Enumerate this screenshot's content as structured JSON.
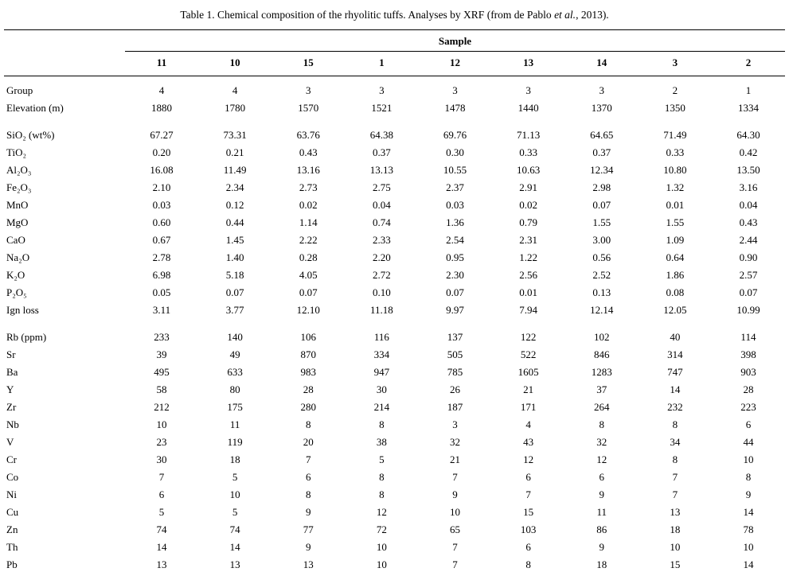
{
  "caption": {
    "part1": "Table 1. Chemical composition of the rhyolitic tuffs. Analyses by XRF (from de Pablo ",
    "italic": "et al.",
    "part2": ", 2013)."
  },
  "table": {
    "group_header": "Sample",
    "columns": [
      "11",
      "10",
      "15",
      "1",
      "12",
      "13",
      "14",
      "3",
      "2"
    ],
    "sections": [
      {
        "name": "sample-info",
        "rows": [
          {
            "label": "Group",
            "values": [
              "4",
              "4",
              "3",
              "3",
              "3",
              "3",
              "3",
              "2",
              "1"
            ]
          },
          {
            "label": "Elevation (m)",
            "values": [
              "1880",
              "1780",
              "1570",
              "1521",
              "1478",
              "1440",
              "1370",
              "1350",
              "1334"
            ]
          }
        ]
      },
      {
        "name": "major-oxides",
        "rows": [
          {
            "label": "SiO₂ (wt%)",
            "values": [
              "67.27",
              "73.31",
              "63.76",
              "64.38",
              "69.76",
              "71.13",
              "64.65",
              "71.49",
              "64.30"
            ]
          },
          {
            "label": "TiO₂",
            "values": [
              "0.20",
              "0.21",
              "0.43",
              "0.37",
              "0.30",
              "0.33",
              "0.37",
              "0.33",
              "0.42"
            ]
          },
          {
            "label": "Al₂O₃",
            "values": [
              "16.08",
              "11.49",
              "13.16",
              "13.13",
              "10.55",
              "10.63",
              "12.34",
              "10.80",
              "13.50"
            ]
          },
          {
            "label": "Fe₂O₃",
            "values": [
              "2.10",
              "2.34",
              "2.73",
              "2.75",
              "2.37",
              "2.91",
              "2.98",
              "1.32",
              "3.16"
            ]
          },
          {
            "label": "MnO",
            "values": [
              "0.03",
              "0.12",
              "0.02",
              "0.04",
              "0.03",
              "0.02",
              "0.07",
              "0.01",
              "0.04"
            ]
          },
          {
            "label": "MgO",
            "values": [
              "0.60",
              "0.44",
              "1.14",
              "0.74",
              "1.36",
              "0.79",
              "1.55",
              "1.55",
              "0.43"
            ]
          },
          {
            "label": "CaO",
            "values": [
              "0.67",
              "1.45",
              "2.22",
              "2.33",
              "2.54",
              "2.31",
              "3.00",
              "1.09",
              "2.44"
            ]
          },
          {
            "label": "Na₂O",
            "values": [
              "2.78",
              "1.40",
              "0.28",
              "2.20",
              "0.95",
              "1.22",
              "0.56",
              "0.64",
              "0.90"
            ]
          },
          {
            "label": "K₂O",
            "values": [
              "6.98",
              "5.18",
              "4.05",
              "2.72",
              "2.30",
              "2.56",
              "2.52",
              "1.86",
              "2.57"
            ]
          },
          {
            "label": "P₂O₅",
            "values": [
              "0.05",
              "0.07",
              "0.07",
              "0.10",
              "0.07",
              "0.01",
              "0.13",
              "0.08",
              "0.07"
            ]
          },
          {
            "label": "Ign loss",
            "values": [
              "3.11",
              "3.77",
              "12.10",
              "11.18",
              "9.97",
              "7.94",
              "12.14",
              "12.05",
              "10.99"
            ]
          }
        ]
      },
      {
        "name": "trace-elements",
        "rows": [
          {
            "label": "Rb (ppm)",
            "values": [
              "233",
              "140",
              "106",
              "116",
              "137",
              "122",
              "102",
              "40",
              "114"
            ]
          },
          {
            "label": "Sr",
            "values": [
              "39",
              "49",
              "870",
              "334",
              "505",
              "522",
              "846",
              "314",
              "398"
            ]
          },
          {
            "label": "Ba",
            "values": [
              "495",
              "633",
              "983",
              "947",
              "785",
              "1605",
              "1283",
              "747",
              "903"
            ]
          },
          {
            "label": "Y",
            "values": [
              "58",
              "80",
              "28",
              "30",
              "26",
              "21",
              "37",
              "14",
              "28"
            ]
          },
          {
            "label": "Zr",
            "values": [
              "212",
              "175",
              "280",
              "214",
              "187",
              "171",
              "264",
              "232",
              "223"
            ]
          },
          {
            "label": "Nb",
            "values": [
              "10",
              "11",
              "8",
              "8",
              "3",
              "4",
              "8",
              "8",
              "6"
            ]
          },
          {
            "label": "V",
            "values": [
              "23",
              "119",
              "20",
              "38",
              "32",
              "43",
              "32",
              "34",
              "44"
            ]
          },
          {
            "label": "Cr",
            "values": [
              "30",
              "18",
              "7",
              "5",
              "21",
              "12",
              "12",
              "8",
              "10"
            ]
          },
          {
            "label": "Co",
            "values": [
              "7",
              "5",
              "6",
              "8",
              "7",
              "6",
              "6",
              "7",
              "8"
            ]
          },
          {
            "label": "Ni",
            "values": [
              "6",
              "10",
              "8",
              "8",
              "9",
              "7",
              "9",
              "7",
              "9"
            ]
          },
          {
            "label": "Cu",
            "values": [
              "5",
              "5",
              "9",
              "12",
              "10",
              "15",
              "11",
              "13",
              "14"
            ]
          },
          {
            "label": "Zn",
            "values": [
              "74",
              "74",
              "77",
              "72",
              "65",
              "103",
              "86",
              "18",
              "78"
            ]
          },
          {
            "label": "Th",
            "values": [
              "14",
              "14",
              "9",
              "10",
              "7",
              "6",
              "9",
              "10",
              "10"
            ]
          },
          {
            "label": "Pb",
            "values": [
              "13",
              "13",
              "13",
              "10",
              "7",
              "8",
              "18",
              "15",
              "14"
            ]
          }
        ]
      }
    ]
  }
}
